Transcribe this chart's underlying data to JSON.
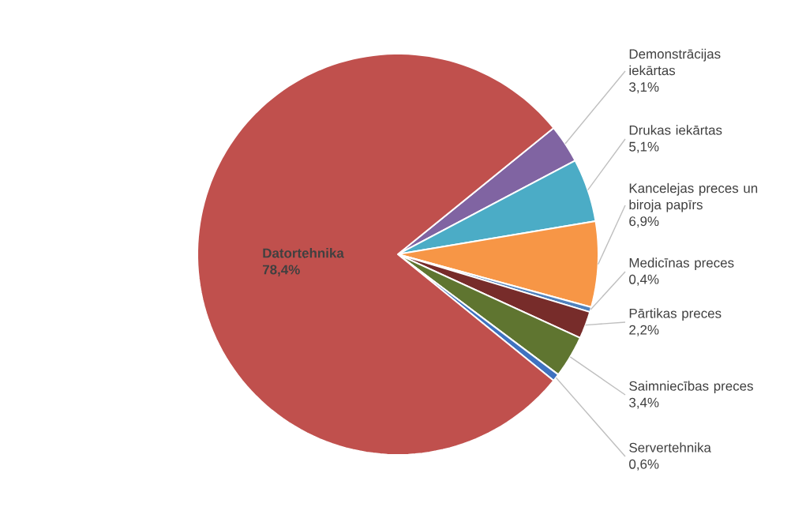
{
  "chart_data": {
    "type": "pie",
    "categories": [
      "Demonstrācijas iekārtas",
      "Drukas iekārtas",
      "Kancelejas preces un biroja papīrs",
      "Medicīnas preces",
      "Pārtikas preces",
      "Saimniecības preces",
      "Servertehnika",
      "Datortehnika"
    ],
    "values": [
      3.1,
      5.1,
      6.9,
      0.4,
      2.2,
      3.4,
      0.6,
      78.4
    ],
    "value_labels": [
      "3,1%",
      "5,1%",
      "6,9%",
      "0,4%",
      "2,2%",
      "3,4%",
      "0,6%",
      "78,4%"
    ],
    "colors": [
      "#8064a2",
      "#4bacc6",
      "#f79646",
      "#4f81bd",
      "#772c2a",
      "#5f7530",
      "#3f72c0",
      "#c0504d"
    ]
  }
}
